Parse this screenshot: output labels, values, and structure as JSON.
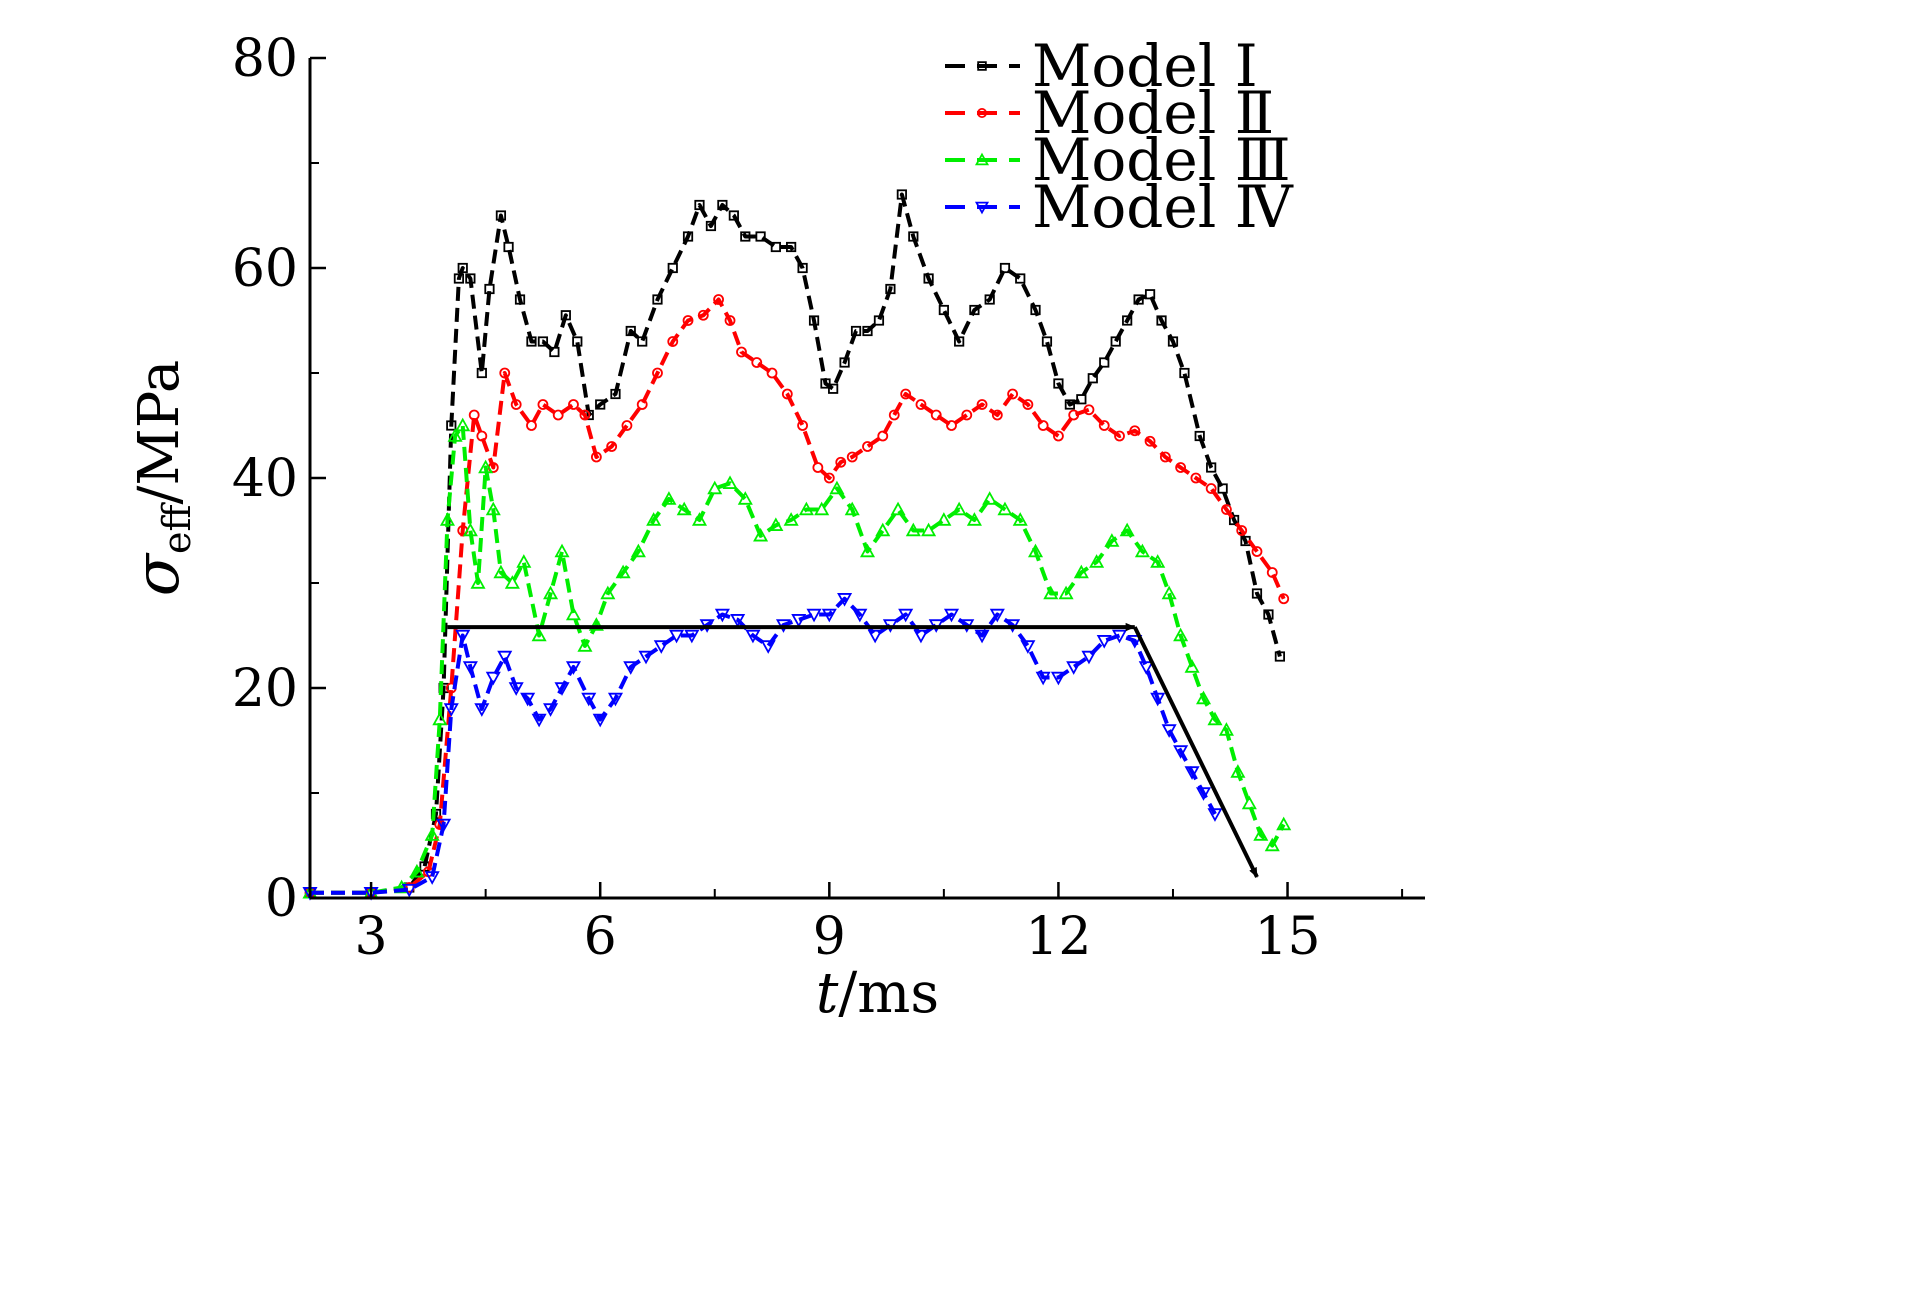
{
  "chart_data": {
    "type": "scatter",
    "title": "",
    "xlabel": {
      "var": "t",
      "unit": "/ms"
    },
    "ylabel": {
      "sym": "σ",
      "sub": "eff",
      "unit": "/MPa"
    },
    "xlim": [
      2.2,
      16.8
    ],
    "ylim": [
      0,
      80
    ],
    "xticks": [
      3,
      6,
      9,
      12,
      15
    ],
    "yticks": [
      0,
      20,
      40,
      60,
      80
    ],
    "x_tick_labels": [
      "3",
      "6",
      "9",
      "12",
      "15"
    ],
    "y_tick_labels": [
      "0",
      "20",
      "40",
      "60",
      "80"
    ],
    "grid": false,
    "legend_position": "top-right",
    "series": [
      {
        "name": "Model Ⅰ",
        "color": "#000000",
        "marker": "square",
        "x": [
          2.2,
          3.0,
          3.5,
          3.7,
          3.85,
          3.95,
          4.05,
          4.15,
          4.2,
          4.3,
          4.45,
          4.55,
          4.7,
          4.8,
          4.95,
          5.1,
          5.25,
          5.4,
          5.55,
          5.7,
          5.85,
          6.0,
          6.2,
          6.4,
          6.55,
          6.75,
          6.95,
          7.15,
          7.3,
          7.45,
          7.6,
          7.75,
          7.9,
          8.1,
          8.3,
          8.5,
          8.65,
          8.8,
          8.95,
          9.05,
          9.2,
          9.35,
          9.5,
          9.65,
          9.8,
          9.95,
          10.1,
          10.3,
          10.5,
          10.7,
          10.9,
          11.1,
          11.3,
          11.5,
          11.7,
          11.85,
          12.0,
          12.15,
          12.3,
          12.45,
          12.6,
          12.75,
          12.9,
          13.05,
          13.2,
          13.35,
          13.5,
          13.65,
          13.85,
          14.0,
          14.15,
          14.3,
          14.45,
          14.6,
          14.75,
          14.9
        ],
        "y": [
          0.5,
          0.5,
          1.0,
          3.0,
          8.0,
          20.0,
          45.0,
          59.0,
          60.0,
          59.0,
          50.0,
          58.0,
          65.0,
          62.0,
          57.0,
          53.0,
          53.0,
          52.0,
          55.5,
          53.0,
          46.0,
          47.0,
          48.0,
          54.0,
          53.0,
          57.0,
          60.0,
          63.0,
          66.0,
          64.0,
          66.0,
          65.0,
          63.0,
          63.0,
          62.0,
          62.0,
          60.0,
          55.0,
          49.0,
          48.5,
          51.0,
          54.0,
          54.0,
          55.0,
          58.0,
          67.0,
          63.0,
          59.0,
          56.0,
          53.0,
          56.0,
          57.0,
          60.0,
          59.0,
          56.0,
          53.0,
          49.0,
          47.0,
          47.5,
          49.5,
          51.0,
          53.0,
          55.0,
          57.0,
          57.5,
          55.0,
          53.0,
          50.0,
          44.0,
          41.0,
          39.0,
          36.0,
          34.0,
          29.0,
          27.0,
          23.0
        ]
      },
      {
        "name": "Model Ⅱ",
        "color": "#ff0000",
        "marker": "circle",
        "x": [
          2.2,
          3.0,
          3.5,
          3.75,
          3.9,
          4.05,
          4.2,
          4.35,
          4.45,
          4.6,
          4.75,
          4.9,
          5.1,
          5.25,
          5.45,
          5.65,
          5.8,
          5.95,
          6.15,
          6.35,
          6.55,
          6.75,
          6.95,
          7.15,
          7.35,
          7.55,
          7.7,
          7.85,
          8.05,
          8.25,
          8.45,
          8.65,
          8.85,
          9.0,
          9.15,
          9.3,
          9.5,
          9.7,
          9.85,
          10.0,
          10.2,
          10.4,
          10.6,
          10.8,
          11.0,
          11.2,
          11.4,
          11.6,
          11.8,
          12.0,
          12.2,
          12.4,
          12.6,
          12.8,
          13.0,
          13.2,
          13.4,
          13.6,
          13.8,
          14.0,
          14.2,
          14.4,
          14.6,
          14.8,
          14.95
        ],
        "y": [
          0.5,
          0.5,
          1.0,
          2.5,
          7.0,
          20.0,
          35.0,
          46.0,
          44.0,
          41.0,
          50.0,
          47.0,
          45.0,
          47.0,
          46.0,
          47.0,
          46.0,
          42.0,
          43.0,
          45.0,
          47.0,
          50.0,
          53.0,
          55.0,
          55.5,
          57.0,
          55.0,
          52.0,
          51.0,
          50.0,
          48.0,
          45.0,
          41.0,
          40.0,
          41.5,
          42.0,
          43.0,
          44.0,
          46.0,
          48.0,
          47.0,
          46.0,
          45.0,
          46.0,
          47.0,
          46.0,
          48.0,
          47.0,
          45.0,
          44.0,
          46.0,
          46.5,
          45.0,
          44.0,
          44.5,
          43.5,
          42.0,
          41.0,
          40.0,
          39.0,
          37.0,
          35.0,
          33.0,
          31.0,
          28.5
        ]
      },
      {
        "name": "Model Ⅲ",
        "color": "#00ee00",
        "marker": "triangle-up",
        "x": [
          2.2,
          3.0,
          3.4,
          3.6,
          3.8,
          3.9,
          4.0,
          4.1,
          4.2,
          4.3,
          4.4,
          4.5,
          4.6,
          4.7,
          4.85,
          5.0,
          5.2,
          5.35,
          5.5,
          5.65,
          5.8,
          5.95,
          6.1,
          6.3,
          6.5,
          6.7,
          6.9,
          7.1,
          7.3,
          7.5,
          7.7,
          7.9,
          8.1,
          8.3,
          8.5,
          8.7,
          8.9,
          9.1,
          9.3,
          9.5,
          9.7,
          9.9,
          10.1,
          10.3,
          10.5,
          10.7,
          10.9,
          11.1,
          11.3,
          11.5,
          11.7,
          11.9,
          12.1,
          12.3,
          12.5,
          12.7,
          12.9,
          13.1,
          13.3,
          13.45,
          13.6,
          13.75,
          13.9,
          14.05,
          14.2,
          14.35,
          14.5,
          14.65,
          14.8,
          14.95
        ],
        "y": [
          0.5,
          0.5,
          1.0,
          2.5,
          6.0,
          17.0,
          36.0,
          44.0,
          45.0,
          35.0,
          30.0,
          41.0,
          37.0,
          31.0,
          30.0,
          32.0,
          25.0,
          29.0,
          33.0,
          27.0,
          24.0,
          26.0,
          29.0,
          31.0,
          33.0,
          36.0,
          38.0,
          37.0,
          36.0,
          39.0,
          39.5,
          38.0,
          34.5,
          35.5,
          36.0,
          37.0,
          37.0,
          39.0,
          37.0,
          33.0,
          35.0,
          37.0,
          35.0,
          35.0,
          36.0,
          37.0,
          36.0,
          38.0,
          37.0,
          36.0,
          33.0,
          29.0,
          29.0,
          31.0,
          32.0,
          34.0,
          35.0,
          33.0,
          32.0,
          29.0,
          25.0,
          22.0,
          19.0,
          17.0,
          16.0,
          12.0,
          9.0,
          6.0,
          5.0,
          7.0
        ]
      },
      {
        "name": "Model Ⅳ",
        "color": "#0000ff",
        "marker": "triangle-down",
        "x": [
          2.2,
          3.0,
          3.5,
          3.8,
          3.95,
          4.05,
          4.2,
          4.3,
          4.45,
          4.6,
          4.75,
          4.9,
          5.05,
          5.2,
          5.35,
          5.5,
          5.65,
          5.85,
          6.0,
          6.2,
          6.4,
          6.6,
          6.8,
          7.0,
          7.2,
          7.4,
          7.6,
          7.8,
          8.0,
          8.2,
          8.4,
          8.6,
          8.8,
          9.0,
          9.2,
          9.4,
          9.6,
          9.8,
          10.0,
          10.2,
          10.4,
          10.6,
          10.8,
          11.0,
          11.2,
          11.4,
          11.6,
          11.8,
          12.0,
          12.2,
          12.4,
          12.6,
          12.8,
          13.0,
          13.15,
          13.3,
          13.45,
          13.6,
          13.75,
          13.9,
          14.05
        ],
        "y": [
          0.5,
          0.5,
          0.8,
          2.0,
          7.0,
          18.0,
          25.0,
          22.0,
          18.0,
          21.0,
          23.0,
          20.0,
          19.0,
          17.0,
          18.0,
          20.0,
          22.0,
          19.0,
          17.0,
          19.0,
          22.0,
          23.0,
          24.0,
          25.0,
          25.0,
          26.0,
          27.0,
          26.5,
          25.0,
          24.0,
          26.0,
          26.5,
          27.0,
          27.0,
          28.5,
          27.0,
          25.0,
          26.0,
          27.0,
          25.0,
          26.0,
          27.0,
          26.0,
          25.0,
          27.0,
          26.0,
          24.0,
          21.0,
          21.0,
          22.0,
          23.0,
          24.5,
          25.0,
          24.5,
          22.0,
          19.0,
          16.0,
          14.0,
          12.0,
          10.0,
          8.0
        ]
      }
    ],
    "annotations": [
      {
        "type": "arrow",
        "color": "#000000",
        "from": [
          4.0,
          25.8
        ],
        "to": [
          13.0,
          25.8
        ]
      },
      {
        "type": "arrow",
        "color": "#000000",
        "from": [
          13.0,
          25.8
        ],
        "to": [
          14.6,
          2.0
        ]
      }
    ]
  }
}
